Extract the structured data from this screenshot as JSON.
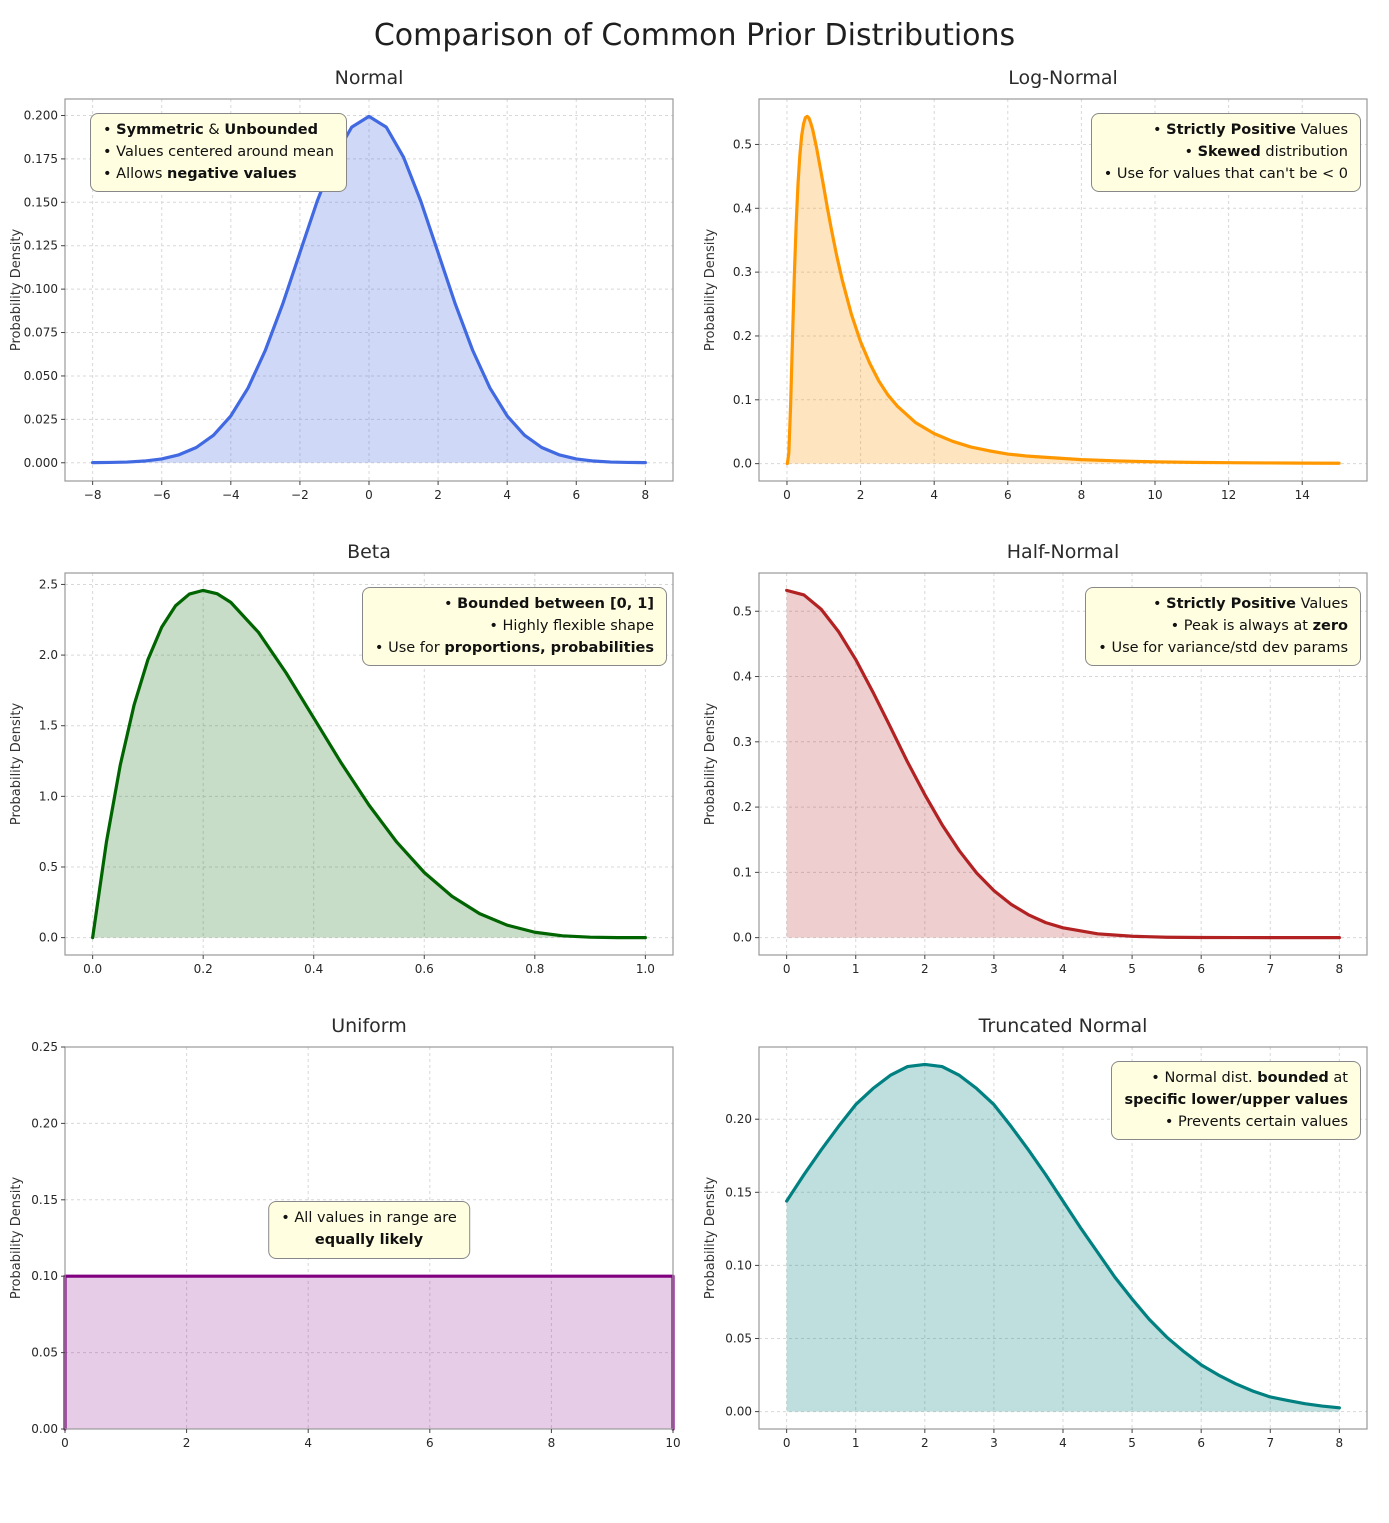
{
  "figure_title": "Comparison of Common Prior Distributions",
  "style": {
    "annotation_bg": "#FFFEE0",
    "annotation_border": "#888888",
    "grid_color": "#d8d8d8",
    "spine_color": "#999999"
  },
  "chart_data": [
    {
      "id": "normal",
      "type": "area",
      "title": "Normal",
      "ylabel": "Probability Density",
      "line_color": "#4169e1",
      "fill_opacity": 0.25,
      "xlim": [
        -8.8,
        8.8
      ],
      "ylim": [
        -0.0105,
        0.2095
      ],
      "xticks": {
        "values": [
          -8,
          -6,
          -4,
          -2,
          0,
          2,
          4,
          6,
          8
        ],
        "labels": [
          "−8",
          "−6",
          "−4",
          "−2",
          "0",
          "2",
          "4",
          "6",
          "8"
        ]
      },
      "yticks": {
        "values": [
          0,
          0.025,
          0.05,
          0.075,
          0.1,
          0.125,
          0.15,
          0.175,
          0.2
        ],
        "labels": [
          "0.000",
          "0.025",
          "0.050",
          "0.075",
          "0.100",
          "0.125",
          "0.150",
          "0.175",
          "0.200"
        ]
      },
      "x": [
        -8,
        -7.5,
        -7,
        -6.5,
        -6,
        -5.5,
        -5,
        -4.5,
        -4,
        -3.5,
        -3,
        -2.5,
        -2,
        -1.5,
        -1,
        -0.5,
        0,
        0.5,
        1,
        1.5,
        2,
        2.5,
        3,
        3.5,
        4,
        4.5,
        5,
        5.5,
        6,
        6.5,
        7,
        7.5,
        8
      ],
      "y": [
        0.0001,
        0.0002,
        0.0004,
        0.001,
        0.0022,
        0.0046,
        0.0088,
        0.0159,
        0.027,
        0.0431,
        0.0648,
        0.0913,
        0.121,
        0.1506,
        0.176,
        0.1933,
        0.1995,
        0.1933,
        0.176,
        0.1506,
        0.121,
        0.0913,
        0.0648,
        0.0431,
        0.027,
        0.0159,
        0.0088,
        0.0046,
        0.0022,
        0.001,
        0.0004,
        0.0002,
        0.0001
      ],
      "annotation": {
        "anchor": "top-left",
        "align": "left",
        "lines": [
          [
            {
              "t": "• ",
              "b": false
            },
            {
              "t": "Symmetric",
              "b": true
            },
            {
              "t": " & ",
              "b": false
            },
            {
              "t": "Unbounded",
              "b": true
            }
          ],
          [
            {
              "t": "• Values centered around mean",
              "b": false
            }
          ],
          [
            {
              "t": "• Allows ",
              "b": false
            },
            {
              "t": "negative values",
              "b": true
            }
          ]
        ]
      }
    },
    {
      "id": "lognormal",
      "type": "area",
      "title": "Log-Normal",
      "ylabel": "Probability Density",
      "line_color": "#ff9800",
      "fill_opacity": 0.25,
      "xlim": [
        -0.76,
        15.76
      ],
      "ylim": [
        -0.0272,
        0.5712
      ],
      "xticks": {
        "values": [
          0,
          2,
          4,
          6,
          8,
          10,
          12,
          14
        ],
        "labels": [
          "0",
          "2",
          "4",
          "6",
          "8",
          "10",
          "12",
          "14"
        ]
      },
      "yticks": {
        "values": [
          0,
          0.1,
          0.2,
          0.3,
          0.4,
          0.5
        ],
        "labels": [
          "0.0",
          "0.1",
          "0.2",
          "0.3",
          "0.4",
          "0.5"
        ]
      },
      "x": [
        0.01,
        0.05,
        0.1,
        0.15,
        0.2,
        0.25,
        0.3,
        0.35,
        0.4,
        0.45,
        0.5,
        0.55,
        0.6,
        0.65,
        0.7,
        0.8,
        0.9,
        1.0,
        1.1,
        1.2,
        1.35,
        1.5,
        1.75,
        2,
        2.25,
        2.5,
        2.75,
        3,
        3.5,
        4,
        4.5,
        5,
        5.5,
        6,
        6.5,
        7,
        8,
        9,
        10,
        11,
        12,
        13,
        14,
        15
      ],
      "y": [
        0.0001,
        0.016,
        0.093,
        0.196,
        0.294,
        0.375,
        0.438,
        0.483,
        0.514,
        0.532,
        0.542,
        0.544,
        0.541,
        0.533,
        0.523,
        0.496,
        0.465,
        0.433,
        0.4,
        0.369,
        0.326,
        0.288,
        0.234,
        0.191,
        0.157,
        0.129,
        0.107,
        0.09,
        0.064,
        0.047,
        0.035,
        0.026,
        0.02,
        0.015,
        0.012,
        0.01,
        0.0063,
        0.0042,
        0.0029,
        0.002,
        0.0015,
        0.0011,
        0.0008,
        0.0006
      ],
      "annotation": {
        "anchor": "top-right",
        "align": "right",
        "lines": [
          [
            {
              "t": "• ",
              "b": false
            },
            {
              "t": "Strictly Positive",
              "b": true
            },
            {
              "t": " Values",
              "b": false
            }
          ],
          [
            {
              "t": "• ",
              "b": false
            },
            {
              "t": "Skewed",
              "b": true
            },
            {
              "t": " distribution",
              "b": false
            }
          ],
          [
            {
              "t": "• Use for values that can't be < 0",
              "b": false
            }
          ]
        ]
      }
    },
    {
      "id": "beta",
      "type": "area",
      "title": "Beta",
      "ylabel": "Probability Density",
      "line_color": "#006400",
      "fill_opacity": 0.22,
      "xlim": [
        -0.05,
        1.05
      ],
      "ylim": [
        -0.123,
        2.581
      ],
      "xticks": {
        "values": [
          0,
          0.2,
          0.4,
          0.6,
          0.8,
          1
        ],
        "labels": [
          "0.0",
          "0.2",
          "0.4",
          "0.6",
          "0.8",
          "1.0"
        ]
      },
      "yticks": {
        "values": [
          0,
          0.5,
          1,
          1.5,
          2,
          2.5
        ],
        "labels": [
          "0.0",
          "0.5",
          "1.0",
          "1.5",
          "2.0",
          "2.5"
        ]
      },
      "x": [
        0,
        0.025,
        0.05,
        0.075,
        0.1,
        0.125,
        0.15,
        0.175,
        0.2,
        0.225,
        0.25,
        0.3,
        0.35,
        0.4,
        0.45,
        0.5,
        0.55,
        0.6,
        0.65,
        0.7,
        0.75,
        0.8,
        0.85,
        0.9,
        0.95,
        1.0
      ],
      "y": [
        0,
        0.678,
        1.222,
        1.647,
        1.968,
        2.198,
        2.349,
        2.432,
        2.458,
        2.435,
        2.373,
        2.161,
        1.874,
        1.555,
        1.235,
        0.938,
        0.677,
        0.461,
        0.293,
        0.17,
        0.088,
        0.038,
        0.013,
        0.003,
        0.0002,
        0
      ],
      "annotation": {
        "anchor": "top-right",
        "align": "right",
        "lines": [
          [
            {
              "t": "• ",
              "b": false
            },
            {
              "t": "Bounded between [0, 1]",
              "b": true
            }
          ],
          [
            {
              "t": "• Highly flexible shape",
              "b": false
            }
          ],
          [
            {
              "t": "• Use for ",
              "b": false
            },
            {
              "t": "proportions, probabilities",
              "b": true
            }
          ]
        ]
      }
    },
    {
      "id": "halfnormal",
      "type": "area",
      "title": "Half-Normal",
      "ylabel": "Probability Density",
      "line_color": "#b22222",
      "fill_opacity": 0.22,
      "xlim": [
        -0.4,
        8.4
      ],
      "ylim": [
        -0.0266,
        0.5586
      ],
      "xticks": {
        "values": [
          0,
          1,
          2,
          3,
          4,
          5,
          6,
          7,
          8
        ],
        "labels": [
          "0",
          "1",
          "2",
          "3",
          "4",
          "5",
          "6",
          "7",
          "8"
        ]
      },
      "yticks": {
        "values": [
          0,
          0.1,
          0.2,
          0.3,
          0.4,
          0.5
        ],
        "labels": [
          "0.0",
          "0.1",
          "0.2",
          "0.3",
          "0.4",
          "0.5"
        ]
      },
      "x": [
        0,
        0.25,
        0.5,
        0.75,
        1,
        1.25,
        1.5,
        1.75,
        2,
        2.25,
        2.5,
        2.75,
        3,
        3.25,
        3.5,
        3.75,
        4,
        4.5,
        5,
        5.5,
        6,
        6.5,
        7,
        7.5,
        8
      ],
      "y": [
        0.532,
        0.525,
        0.503,
        0.469,
        0.426,
        0.376,
        0.323,
        0.269,
        0.219,
        0.173,
        0.133,
        0.099,
        0.072,
        0.051,
        0.035,
        0.023,
        0.015,
        0.0059,
        0.0021,
        0.0006,
        0.0002,
        0.0001,
        0,
        0,
        0
      ],
      "annotation": {
        "anchor": "top-right",
        "align": "right",
        "lines": [
          [
            {
              "t": "• ",
              "b": false
            },
            {
              "t": "Strictly Positive",
              "b": true
            },
            {
              "t": " Values",
              "b": false
            }
          ],
          [
            {
              "t": "• Peak is always at ",
              "b": false
            },
            {
              "t": "zero",
              "b": true
            }
          ],
          [
            {
              "t": "• Use for variance/std dev params",
              "b": false
            }
          ]
        ]
      }
    },
    {
      "id": "uniform",
      "type": "area",
      "title": "Uniform",
      "ylabel": "Probability Density",
      "line_color": "#800080",
      "fill_opacity": 0.2,
      "xlim": [
        0,
        10
      ],
      "ylim": [
        0,
        0.25
      ],
      "xticks": {
        "values": [
          0,
          2,
          4,
          6,
          8,
          10
        ],
        "labels": [
          "0",
          "2",
          "4",
          "6",
          "8",
          "10"
        ]
      },
      "yticks": {
        "values": [
          0,
          0.05,
          0.1,
          0.15,
          0.2,
          0.25
        ],
        "labels": [
          "0.00",
          "0.05",
          "0.10",
          "0.15",
          "0.20",
          "0.25"
        ]
      },
      "x": [
        0,
        0,
        10,
        10
      ],
      "y": [
        0,
        0.1,
        0.1,
        0
      ],
      "annotation": {
        "anchor": "center",
        "align": "center",
        "lines": [
          [
            {
              "t": "• All values in range are",
              "b": false
            }
          ],
          [
            {
              "t": "equally likely",
              "b": true
            }
          ]
        ]
      }
    },
    {
      "id": "truncnormal",
      "type": "area",
      "title": "Truncated Normal",
      "ylabel": "Probability Density",
      "line_color": "#008080",
      "fill_opacity": 0.25,
      "xlim": [
        -0.4,
        8.4
      ],
      "ylim": [
        -0.0119,
        0.2494
      ],
      "xticks": {
        "values": [
          0,
          1,
          2,
          3,
          4,
          5,
          6,
          7,
          8
        ],
        "labels": [
          "0",
          "1",
          "2",
          "3",
          "4",
          "5",
          "6",
          "7",
          "8"
        ]
      },
      "yticks": {
        "values": [
          0,
          0.05,
          0.1,
          0.15,
          0.2
        ],
        "labels": [
          "0.00",
          "0.05",
          "0.10",
          "0.15",
          "0.20"
        ]
      },
      "x": [
        0,
        0.25,
        0.5,
        0.75,
        1,
        1.25,
        1.5,
        1.75,
        2,
        2.25,
        2.5,
        2.75,
        3,
        3.25,
        3.5,
        3.75,
        4,
        4.25,
        4.5,
        4.75,
        5,
        5.25,
        5.5,
        5.75,
        6,
        6.25,
        6.5,
        6.75,
        7,
        7.25,
        7.5,
        7.75,
        8
      ],
      "y": [
        0.144,
        0.162,
        0.179,
        0.195,
        0.21,
        0.221,
        0.23,
        0.236,
        0.2375,
        0.236,
        0.23,
        0.221,
        0.21,
        0.195,
        0.179,
        0.162,
        0.144,
        0.126,
        0.109,
        0.092,
        0.077,
        0.063,
        0.051,
        0.041,
        0.032,
        0.025,
        0.019,
        0.014,
        0.01,
        0.0076,
        0.0054,
        0.0038,
        0.0026
      ],
      "annotation": {
        "anchor": "top-right",
        "align": "right",
        "lines": [
          [
            {
              "t": "• Normal dist. ",
              "b": false
            },
            {
              "t": "bounded",
              "b": true
            },
            {
              "t": " at",
              "b": false
            }
          ],
          [
            {
              "t": "specific lower/upper values",
              "b": true
            }
          ],
          [
            {
              "t": "• Prevents certain values",
              "b": false
            }
          ]
        ]
      }
    }
  ]
}
